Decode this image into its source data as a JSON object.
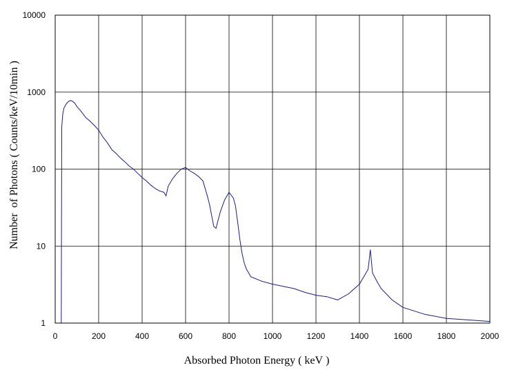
{
  "chart_data": {
    "type": "line",
    "title": "",
    "xlabel": "Absorbed Photon Energy ( keV )",
    "ylabel": "Number  of Photons ( Counts/keV/10min )",
    "xlim": [
      0,
      2000
    ],
    "ylim": [
      1,
      10000
    ],
    "y_scale": "log",
    "grid": true,
    "legend": "none",
    "x_ticks": [
      "0",
      "200",
      "400",
      "600",
      "800",
      "1000",
      "1200",
      "1400",
      "1600",
      "1800",
      "2000"
    ],
    "y_ticks": [
      "1",
      "10",
      "100",
      "1000",
      "10000"
    ],
    "series_color": "#1a1a8c",
    "series": [
      {
        "x": [
          28,
          30,
          35,
          40,
          50,
          60,
          70,
          80,
          90,
          100,
          120,
          140,
          160,
          180,
          200,
          220,
          240,
          260,
          280,
          300,
          320,
          340,
          360,
          380,
          400,
          420,
          440,
          460,
          480,
          500,
          510,
          520,
          540,
          560,
          580,
          600,
          620,
          640,
          660,
          680,
          700,
          710,
          720,
          730,
          740,
          750,
          760,
          780,
          800,
          820,
          830,
          840,
          850,
          860,
          870,
          880,
          890,
          900,
          950,
          1000,
          1050,
          1100,
          1150,
          1200,
          1250,
          1300,
          1350,
          1400,
          1420,
          1440,
          1450,
          1460,
          1480,
          1500,
          1550,
          1600,
          1700,
          1800,
          1900,
          2000
        ],
        "y": [
          1,
          350,
          520,
          620,
          700,
          750,
          780,
          760,
          720,
          650,
          560,
          470,
          420,
          370,
          320,
          260,
          220,
          180,
          160,
          140,
          125,
          110,
          100,
          88,
          78,
          70,
          62,
          56,
          52,
          50,
          45,
          60,
          75,
          88,
          100,
          105,
          95,
          88,
          80,
          70,
          45,
          35,
          25,
          18,
          17,
          22,
          28,
          40,
          50,
          42,
          33,
          20,
          12,
          8,
          6,
          5,
          4.5,
          4,
          3.5,
          3.2,
          3,
          2.8,
          2.5,
          2.3,
          2.2,
          2,
          2.4,
          3.2,
          4,
          5,
          9,
          4.5,
          3.5,
          2.8,
          2,
          1.6,
          1.3,
          1.15,
          1.1,
          1.05
        ]
      }
    ]
  }
}
